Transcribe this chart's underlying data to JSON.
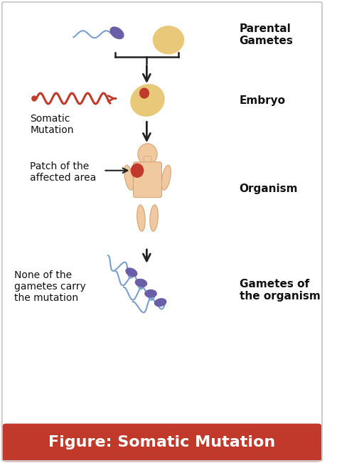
{
  "title": "Figure: Somatic Mutation",
  "title_bg": "#c0392b",
  "title_color": "#ffffff",
  "title_fontsize": 16,
  "bg_color": "#ffffff",
  "border_color": "#cccccc",
  "labels": {
    "parental_gametes": "Parental\nGametes",
    "embryo": "Embryo",
    "organism": "Organism",
    "gametes_of_organism": "Gametes of\nthe organism",
    "somatic_mutation": "Somatic\nMutation",
    "patch_label": "Patch of the\naffected area",
    "none_label": "None of the\ngametes carry\nthe mutation"
  },
  "label_fontsize": 11,
  "annotation_fontsize": 10,
  "sperm_color": "#7b9fcc",
  "sperm_head_color": "#6b5ea8",
  "egg_color": "#e8c97a",
  "embryo_body_color": "#e8c97a",
  "embryo_spot_color": "#c0392b",
  "body_color": "#f0c9a0",
  "body_outline": "#d4a574",
  "mutation_spot_color": "#c0392b",
  "wave_color": "#c0392b",
  "arrow_color": "#222222",
  "line_color": "#222222"
}
